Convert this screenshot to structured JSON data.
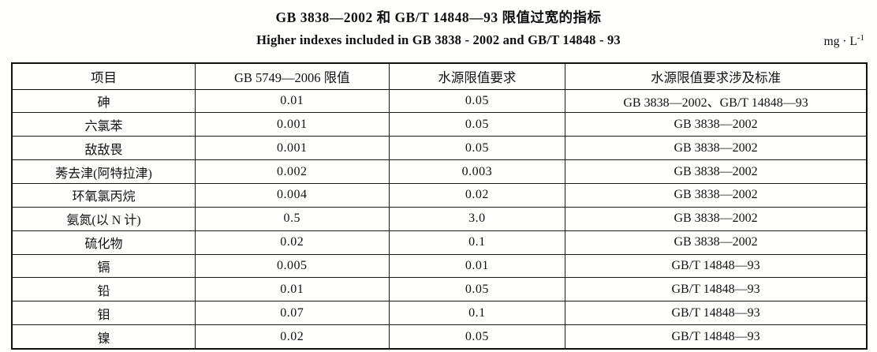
{
  "page": {
    "title_cn": "GB 3838—2002 和 GB/T 14848—93 限值过宽的指标",
    "title_en": "Higher indexes included in GB 3838 - 2002 and GB/T 14848 - 93",
    "unit_base": "mg · L",
    "unit_sup": "-1"
  },
  "table": {
    "headers": [
      "项目",
      "GB 5749—2006 限值",
      "水源限值要求",
      "水源限值要求涉及标准"
    ],
    "rows": [
      {
        "item": "砷",
        "gb5749_limit": "0.01",
        "source_limit": "0.05",
        "standards": "GB 3838—2002、GB/T 14848—93"
      },
      {
        "item": "六氯苯",
        "gb5749_limit": "0.001",
        "source_limit": "0.05",
        "standards": "GB 3838—2002"
      },
      {
        "item": "敌敌畏",
        "gb5749_limit": "0.001",
        "source_limit": "0.05",
        "standards": "GB 3838—2002"
      },
      {
        "item": "莠去津(阿特拉津)",
        "gb5749_limit": "0.002",
        "source_limit": "0.003",
        "standards": "GB 3838—2002"
      },
      {
        "item": "环氧氯丙烷",
        "gb5749_limit": "0.004",
        "source_limit": "0.02",
        "standards": "GB 3838—2002"
      },
      {
        "item": "氨氮(以 N 计)",
        "gb5749_limit": "0.5",
        "source_limit": "3.0",
        "standards": "GB 3838—2002"
      },
      {
        "item": "硫化物",
        "gb5749_limit": "0.02",
        "source_limit": "0.1",
        "standards": "GB 3838—2002"
      },
      {
        "item": "镉",
        "gb5749_limit": "0.005",
        "source_limit": "0.01",
        "standards": "GB/T 14848—93"
      },
      {
        "item": "铅",
        "gb5749_limit": "0.01",
        "source_limit": "0.05",
        "standards": "GB/T 14848—93"
      },
      {
        "item": "钼",
        "gb5749_limit": "0.07",
        "source_limit": "0.1",
        "standards": "GB/T 14848—93"
      },
      {
        "item": "镍",
        "gb5749_limit": "0.02",
        "source_limit": "0.05",
        "standards": "GB/T 14848—93"
      }
    ]
  }
}
